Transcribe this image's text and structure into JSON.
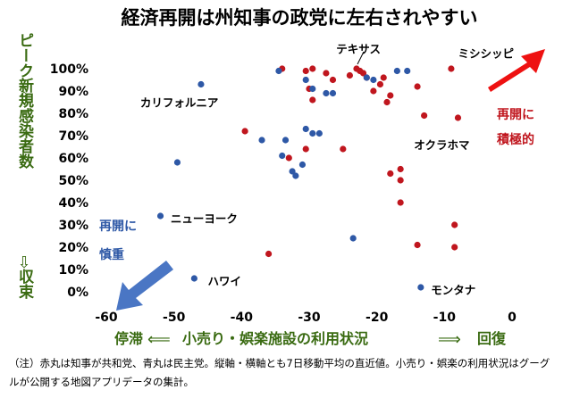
{
  "chart_data": {
    "type": "scatter",
    "title": "経済再開は州知事の政党に左右されやすい",
    "xlabel": "小売り・娯楽施設の利用状況",
    "x_left_label": "停滞",
    "x_right_label": "回復",
    "ylabel": "新規感染者数",
    "y_top_label": "ピーク",
    "y_bottom_label": "収束",
    "xlim": [
      -60,
      0
    ],
    "ylim": [
      0,
      100
    ],
    "x_ticks": [
      -60,
      -50,
      -40,
      -30,
      -20,
      -10,
      0
    ],
    "y_ticks": [
      "0%",
      "10%",
      "20%",
      "30%",
      "40%",
      "50%",
      "60%",
      "70%",
      "80%",
      "90%",
      "100%"
    ],
    "x_tick_labels": [
      "-60",
      "-50",
      "-40",
      "-30",
      "-20",
      "-10",
      "0"
    ],
    "grid": false,
    "colors": {
      "republican": "#c0161e",
      "democrat": "#2e58a6",
      "green": "#3a6b12",
      "arrow_red": "#ee1111",
      "arrow_blue": "#4a76c4"
    },
    "series": [
      {
        "key": "republican",
        "points": [
          [
            -34,
            100
          ],
          [
            -30.5,
            99
          ],
          [
            -29.5,
            100
          ],
          [
            -27.5,
            98
          ],
          [
            -26.5,
            95
          ],
          [
            -24,
            97
          ],
          [
            -23,
            100
          ],
          [
            -22.5,
            99
          ],
          [
            -22,
            98
          ],
          [
            -21.5,
            96
          ],
          [
            -19,
            96
          ],
          [
            -19.5,
            93
          ],
          [
            -20.5,
            90
          ],
          [
            -18,
            88
          ],
          [
            -18.5,
            85
          ],
          [
            -14,
            92
          ],
          [
            -13,
            79
          ],
          [
            -9,
            100
          ],
          [
            -8,
            78
          ],
          [
            -30,
            91
          ],
          [
            -29.5,
            86
          ],
          [
            -33,
            60
          ],
          [
            -30.5,
            64
          ],
          [
            -39.5,
            72
          ],
          [
            -25,
            64
          ],
          [
            -18,
            53
          ],
          [
            -16.5,
            55
          ],
          [
            -16.5,
            50
          ],
          [
            -16.5,
            40
          ],
          [
            -36,
            17
          ],
          [
            -14,
            21
          ],
          [
            -8.5,
            20
          ],
          [
            -8.5,
            30
          ]
        ]
      },
      {
        "key": "democrat",
        "points": [
          [
            -46,
            93
          ],
          [
            -34.5,
            99
          ],
          [
            -30.5,
            95
          ],
          [
            -29.5,
            91
          ],
          [
            -27.5,
            89
          ],
          [
            -26.5,
            89
          ],
          [
            -21.5,
            96
          ],
          [
            -20.5,
            95
          ],
          [
            -17,
            99
          ],
          [
            -15.5,
            99
          ],
          [
            -30.5,
            73
          ],
          [
            -29.5,
            71
          ],
          [
            -28.5,
            71
          ],
          [
            -33.5,
            68
          ],
          [
            -37,
            68
          ],
          [
            -34,
            61
          ],
          [
            -31,
            57
          ],
          [
            -32.5,
            54
          ],
          [
            -32,
            52
          ],
          [
            -49.5,
            58
          ],
          [
            -52,
            34
          ],
          [
            -23.5,
            24
          ],
          [
            -47,
            6
          ],
          [
            -13.5,
            2
          ]
        ]
      }
    ],
    "annotations": [
      {
        "text": "テキサス",
        "x": -26,
        "y": 109
      },
      {
        "text": "ミシシッピ",
        "x": -8,
        "y": 107
      },
      {
        "text": "カリフォルニア",
        "x": -55,
        "y": 85
      },
      {
        "text": "オクラホマ",
        "x": -14.5,
        "y": 66
      },
      {
        "text": "ニューヨーク",
        "x": -50.5,
        "y": 33
      },
      {
        "text": "ハワイ",
        "x": -45,
        "y": 5
      },
      {
        "text": "モンタナ",
        "x": -12,
        "y": 1
      }
    ],
    "arrow_labels": {
      "red": [
        "再開に",
        "積極的"
      ],
      "blue": [
        "再開に",
        "慎重"
      ]
    }
  },
  "note": "（注）赤丸は知事が共和党、青丸は民主党。縦軸・横軸とも7日移動平均の直近値。小売り・娯楽の利用状況はグーグルが公開する地図アプリデータの集計。"
}
